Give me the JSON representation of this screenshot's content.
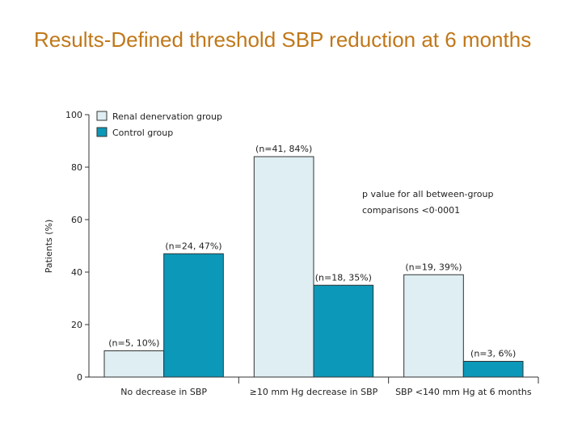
{
  "slide": {
    "title": "Results-Defined threshold SBP reduction at 6 months"
  },
  "chart_data": {
    "type": "bar",
    "ylabel": "Patients (%)",
    "ylim": [
      0,
      100
    ],
    "yticks": [
      0,
      20,
      40,
      60,
      80,
      100
    ],
    "categories": [
      "No decrease in SBP",
      "≥10 mm Hg decrease in SBP",
      "SBP <140 mm Hg at 6 months"
    ],
    "series": [
      {
        "name": "Renal denervation group",
        "color": "#deeef3",
        "values": [
          10,
          84,
          39
        ],
        "labels": [
          "(n=5, 10%)",
          "(n=41, 84%)",
          "(n=19, 39%)"
        ]
      },
      {
        "name": "Control group",
        "color": "#0c98b8",
        "values": [
          47,
          35,
          6
        ],
        "labels": [
          "(n=24, 47%)",
          "(n=18, 35%)",
          "(n=3, 6%)"
        ]
      }
    ],
    "legend_position": "top-left",
    "annotation": [
      "p value for all between-group",
      "comparisons <0·0001"
    ]
  }
}
